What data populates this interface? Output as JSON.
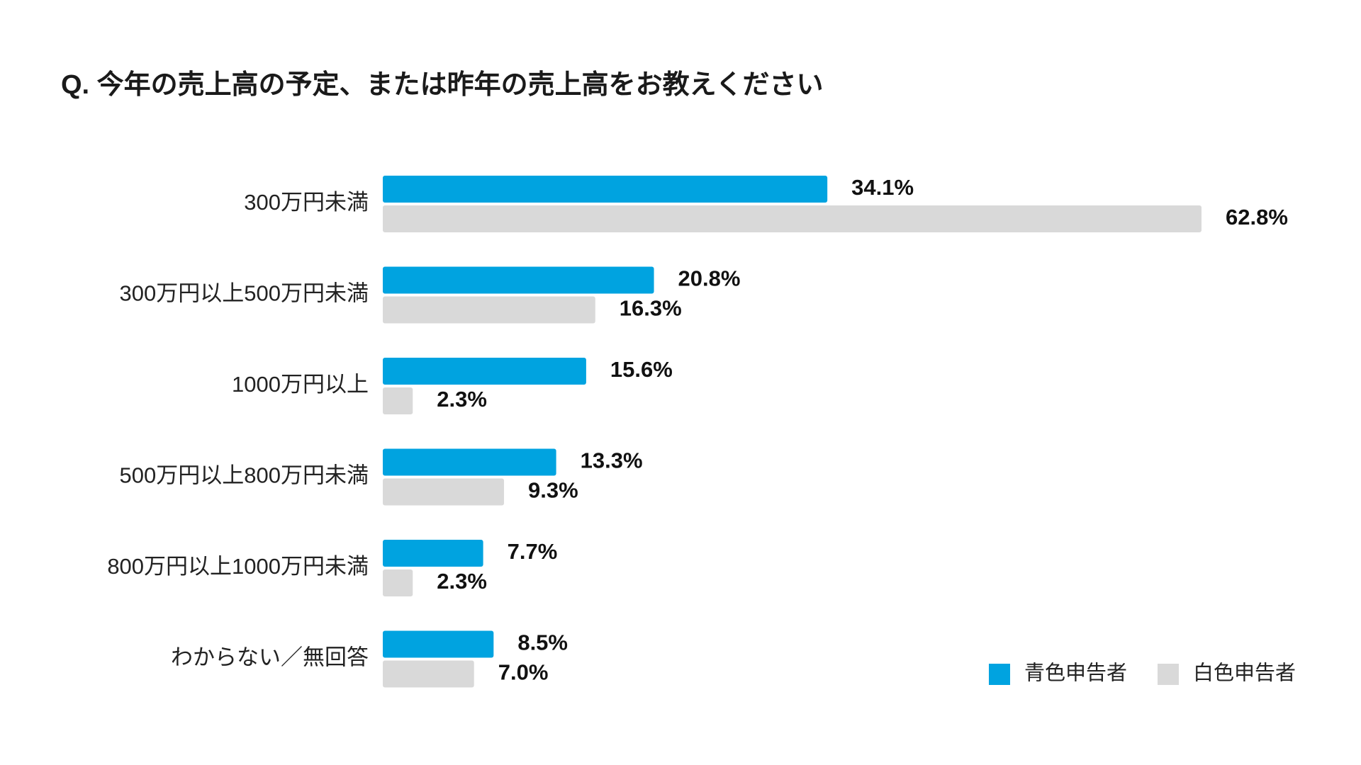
{
  "chart_data": {
    "type": "bar",
    "orientation": "horizontal",
    "title": "Q. 今年の売上高の予定、または昨年の売上高をお教えください",
    "categories": [
      "300万円未満",
      "300万円以上500万円未満",
      "1000万円以上",
      "500万円以上800万円未満",
      "800万円以上1000万円未満",
      "わからない／無回答"
    ],
    "series": [
      {
        "name": "青色申告者",
        "color": "#00A3E0",
        "values": [
          34.1,
          20.8,
          15.6,
          13.3,
          7.7,
          8.5
        ],
        "labels": [
          "34.1%",
          "20.8%",
          "15.6%",
          "13.3%",
          "7.7%",
          "8.5%"
        ]
      },
      {
        "name": "白色申告者",
        "color": "#D9D9D9",
        "values": [
          62.8,
          16.3,
          2.3,
          9.3,
          2.3,
          7.0
        ],
        "labels": [
          "62.8%",
          "16.3%",
          "2.3%",
          "9.3%",
          "2.3%",
          "7.0%"
        ]
      }
    ],
    "xlim": [
      0,
      62.8
    ],
    "unit": "%",
    "grid": false,
    "legend": "bottom-right"
  }
}
